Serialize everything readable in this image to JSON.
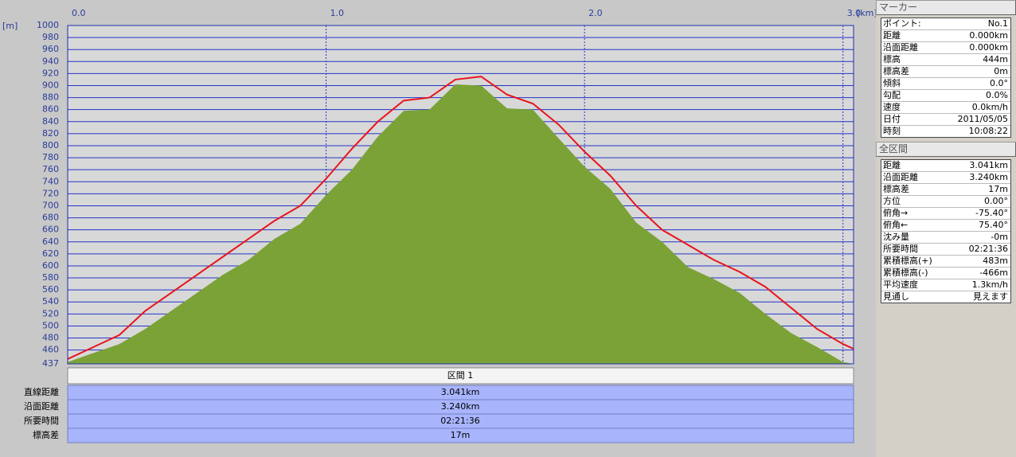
{
  "chart_data": {
    "type": "area",
    "y_unit": "[m]",
    "x_unit": "[km]",
    "x": [
      0,
      0.1,
      0.2,
      0.3,
      0.4,
      0.5,
      0.6,
      0.7,
      0.8,
      0.9,
      1.0,
      1.1,
      1.2,
      1.3,
      1.4,
      1.5,
      1.6,
      1.7,
      1.8,
      1.9,
      2.0,
      2.1,
      2.2,
      2.3,
      2.4,
      2.5,
      2.6,
      2.7,
      2.8,
      2.9,
      3.0,
      3.041
    ],
    "xlim": [
      0,
      3.041
    ],
    "xticks": [
      {
        "value": 0,
        "label": "0.0"
      },
      {
        "value": 1,
        "label": "1.0"
      },
      {
        "value": 2,
        "label": "2.0"
      },
      {
        "value": 3,
        "label": "3.0"
      }
    ],
    "ylim": [
      437,
      1000
    ],
    "yticks": [
      1000,
      980,
      960,
      940,
      920,
      900,
      880,
      860,
      840,
      820,
      800,
      780,
      760,
      740,
      720,
      700,
      680,
      660,
      640,
      620,
      600,
      580,
      560,
      540,
      520,
      500,
      480,
      460,
      437
    ],
    "grid": true,
    "series": [
      {
        "kind": "area",
        "color": "#7aa236",
        "values": [
          440,
          455,
          470,
          495,
          525,
          555,
          585,
          610,
          645,
          670,
          718,
          760,
          815,
          858,
          860,
          902,
          900,
          862,
          860,
          812,
          765,
          728,
          672,
          640,
          598,
          578,
          555,
          520,
          488,
          465,
          440,
          437
        ]
      },
      {
        "kind": "line",
        "color": "#e8141c",
        "values": [
          445,
          465,
          485,
          525,
          555,
          585,
          615,
          645,
          675,
          700,
          745,
          795,
          840,
          875,
          880,
          910,
          915,
          885,
          870,
          835,
          790,
          750,
          700,
          660,
          635,
          610,
          590,
          565,
          530,
          495,
          470,
          462
        ]
      }
    ]
  },
  "section_table": {
    "header": "区間 1",
    "rows": [
      [
        "直線距離",
        "3.041km"
      ],
      [
        "沿面距離",
        "3.240km"
      ],
      [
        "所要時間",
        "02:21:36"
      ],
      [
        "標高差",
        "17m"
      ]
    ]
  },
  "marker": {
    "title": "マーカー",
    "rows": [
      [
        "ポイント:",
        "No.1"
      ],
      [
        "距離",
        "0.000km"
      ],
      [
        "沿面距離",
        "0.000km"
      ],
      [
        "標高",
        "444m"
      ],
      [
        "標高差",
        "0m"
      ],
      [
        "傾斜",
        "0.0°"
      ],
      [
        "勾配",
        "0.0%"
      ],
      [
        "速度",
        "0.0km/h"
      ],
      [
        "日付",
        "2011/05/05"
      ],
      [
        "時刻",
        "10:08:22"
      ]
    ]
  },
  "total": {
    "title": "全区間",
    "rows": [
      [
        "距離",
        "3.041km"
      ],
      [
        "沿面距離",
        "3.240km"
      ],
      [
        "標高差",
        "17m"
      ],
      [
        "方位",
        "0.00°"
      ],
      [
        "俯角→",
        "-75.40°"
      ],
      [
        "俯角←",
        "75.40°"
      ],
      [
        "沈み量",
        "-0m"
      ],
      [
        "所要時間",
        "02:21:36"
      ],
      [
        "累積標高(+)",
        "483m"
      ],
      [
        "累積標高(-)",
        "-466m"
      ],
      [
        "平均速度",
        "1.3km/h"
      ],
      [
        "見通し",
        "見えます"
      ]
    ]
  }
}
